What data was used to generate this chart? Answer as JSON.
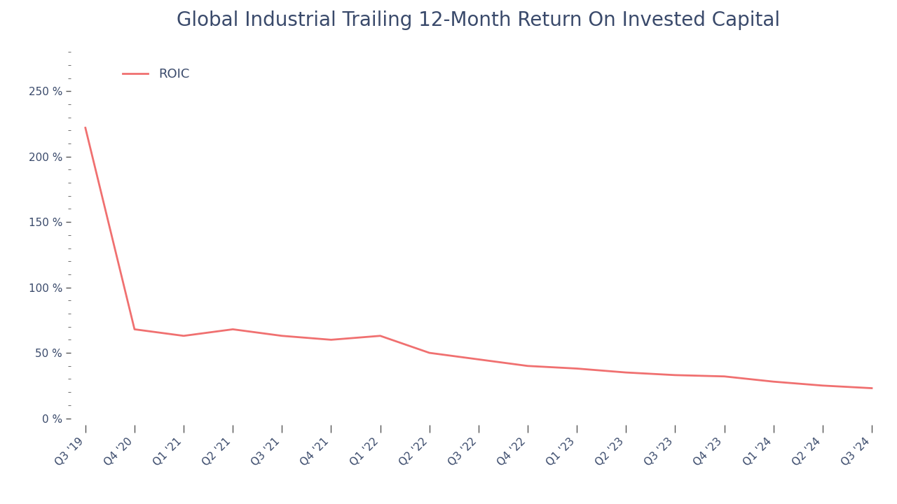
{
  "title": "Global Industrial Trailing 12-Month Return On Invested Capital",
  "legend_label": "ROIC",
  "line_color": "#f07070",
  "title_color": "#3a4a6b",
  "axis_label_color": "#3a4a6b",
  "tick_color": "#555555",
  "background_color": "#ffffff",
  "x_labels": [
    "Q3 '19",
    "Q4 '20",
    "Q1 '21",
    "Q2 '21",
    "Q3 '21",
    "Q4 '21",
    "Q1 '22",
    "Q2 '22",
    "Q3 '22",
    "Q4 '22",
    "Q1 '23",
    "Q2 '23",
    "Q3 '23",
    "Q4 '23",
    "Q1 '24",
    "Q2 '24",
    "Q3 '24"
  ],
  "y_values": [
    222,
    68,
    63,
    68,
    63,
    60,
    63,
    50,
    45,
    40,
    38,
    35,
    33,
    32,
    28,
    25,
    23
  ],
  "yticks": [
    0,
    50,
    100,
    150,
    200,
    250
  ],
  "ylim": [
    -5,
    285
  ],
  "title_fontsize": 20,
  "legend_fontsize": 13,
  "tick_fontsize": 11,
  "line_width": 2.0
}
